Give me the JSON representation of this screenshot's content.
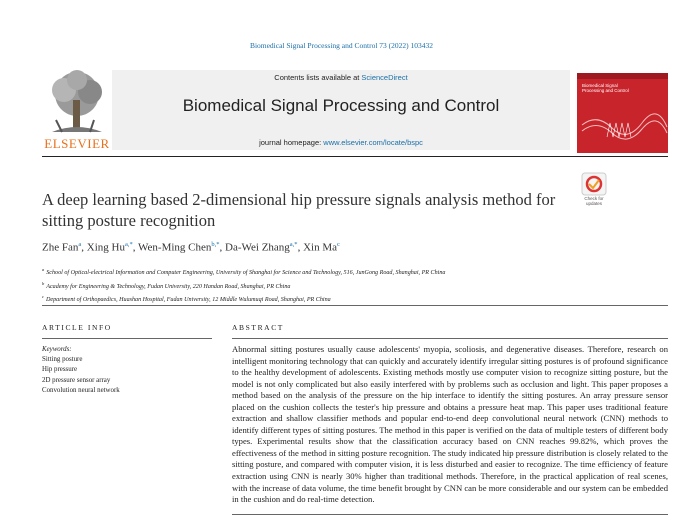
{
  "journal_ref": "Biomedical Signal Processing and Control 73 (2022) 103432",
  "header": {
    "contents_prefix": "Contents lists available at ",
    "contents_link": "ScienceDirect",
    "journal_title": "Biomedical Signal Processing and Control",
    "homepage_prefix": "journal homepage: ",
    "homepage_url": "www.elsevier.com/locate/bspc",
    "publisher": "ELSEVIER",
    "cover_title": "Biomedical Signal Processing and Control"
  },
  "check_updates": "Check for updates",
  "article": {
    "title": "A deep learning based 2-dimensional hip pressure signals analysis method for sitting posture recognition",
    "authors": [
      {
        "name": "Zhe Fan",
        "marks": "a",
        "sep": ", "
      },
      {
        "name": "Xing Hu",
        "marks": "a,*",
        "sep": ", "
      },
      {
        "name": "Wen-Ming Chen",
        "marks": "b,*",
        "sep": ", "
      },
      {
        "name": "Da-Wei Zhang",
        "marks": "a,*",
        "sep": ", "
      },
      {
        "name": "Xin Ma",
        "marks": "c"
      }
    ],
    "affiliations": [
      {
        "mark": "a",
        "text": "School of Optical-electrical Information and Computer Engineering, University of Shanghai for Science and Technology, 516, JunGong Road, Shanghai, PR China"
      },
      {
        "mark": "b",
        "text": "Academy for Engineering & Technology, Fudan University, 220 Handan Road, Shanghai, PR China"
      },
      {
        "mark": "c",
        "text": "Department of Orthopaedics, Huashan Hospital, Fudan University, 12 Middle Wulumuqi Road, Shanghai, PR China"
      }
    ]
  },
  "article_info": {
    "heading": "ARTICLE INFO",
    "keywords_label": "Keywords:",
    "keywords": [
      "Sitting posture",
      "Hip pressure",
      "2D pressure sensor array",
      "Convolution neural network"
    ]
  },
  "abstract": {
    "heading": "ABSTRACT",
    "text": "Abnormal sitting postures usually cause adolescents' myopia, scoliosis, and degenerative diseases. Therefore, research on intelligent monitoring technology that can quickly and accurately identify irregular sitting postures is of profound significance to the healthy development of adolescents. Existing methods mostly use computer vision to recognize sitting posture, but the model is not only complicated but also easily interfered with by problems such as occlusion and light. This paper proposes a method based on the analysis of the pressure on the hip interface to identify the sitting postures. An array pressure sensor placed on the cushion collects the tester's hip pressure and obtains a pressure heat map. This paper uses traditional feature extraction and shallow classifier methods and popular end-to-end deep convolutional neural network (CNN) methods to identify different types of sitting postures. The method in this paper is verified on the data of multiple testers of different body types. Experimental results show that the classification accuracy based on CNN reaches 99.82%, which proves the effectiveness of the method in sitting posture recognition. The study indicated hip pressure distribution is closely related to the sitting posture, and compared with computer vision, it is less disturbed and easier to recognize. The time efficiency of feature extraction using CNN is nearly 30% higher than traditional methods. Therefore, in the practical application of real scenes, with the increase of data volume, the time benefit brought by CNN can be more considerable and our system can be embedded in the cushion and do real-time detection."
  }
}
